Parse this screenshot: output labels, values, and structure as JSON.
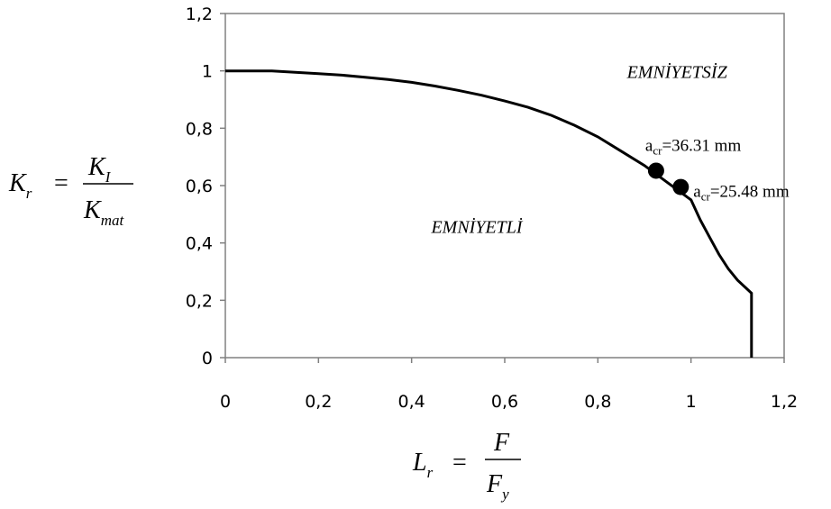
{
  "chart_data": {
    "type": "line",
    "xlim": [
      0,
      1.2
    ],
    "ylim": [
      0,
      1.2
    ],
    "x_ticks": [
      "0",
      "0,2",
      "0,4",
      "0,6",
      "0,8",
      "1",
      "1,2"
    ],
    "y_ticks": [
      "0",
      "0,2",
      "0,4",
      "0,6",
      "0,8",
      "1",
      "1,2"
    ],
    "xlabel": {
      "symbol": "L",
      "sub": "r",
      "num": "F",
      "den": "F",
      "den_sub": "y"
    },
    "ylabel": {
      "symbol": "K",
      "sub": "r",
      "num": "K",
      "num_sub": "I",
      "den": "K",
      "den_sub": "mat"
    },
    "grid": false,
    "series": [
      {
        "x": [
          0,
          0.05,
          0.1,
          0.15,
          0.2,
          0.25,
          0.3,
          0.35,
          0.4,
          0.45,
          0.5,
          0.55,
          0.6,
          0.65,
          0.7,
          0.75,
          0.8,
          0.85,
          0.9,
          0.95,
          1.0,
          1.02,
          1.04,
          1.06,
          1.08,
          1.1,
          1.13,
          1.13
        ],
        "y": [
          1.0,
          1.0,
          1.0,
          0.995,
          0.99,
          0.985,
          0.978,
          0.97,
          0.96,
          0.947,
          0.932,
          0.915,
          0.895,
          0.873,
          0.845,
          0.81,
          0.77,
          0.72,
          0.67,
          0.61,
          0.55,
          0.48,
          0.42,
          0.36,
          0.31,
          0.27,
          0.225,
          0
        ]
      }
    ],
    "points": [
      {
        "x": 0.925,
        "y": 0.652,
        "label_main": "a",
        "label_sub": "cr",
        "label_rest": "=36.31 mm"
      },
      {
        "x": 0.978,
        "y": 0.595,
        "label_main": "a",
        "label_sub": "cr",
        "label_rest": "=25.48 mm"
      }
    ],
    "regions": [
      {
        "text": "EMNİYETSİZ",
        "x": 0.97,
        "y": 0.975
      },
      {
        "text": "EMNİYETLİ",
        "x": 0.54,
        "y": 0.435
      }
    ]
  }
}
